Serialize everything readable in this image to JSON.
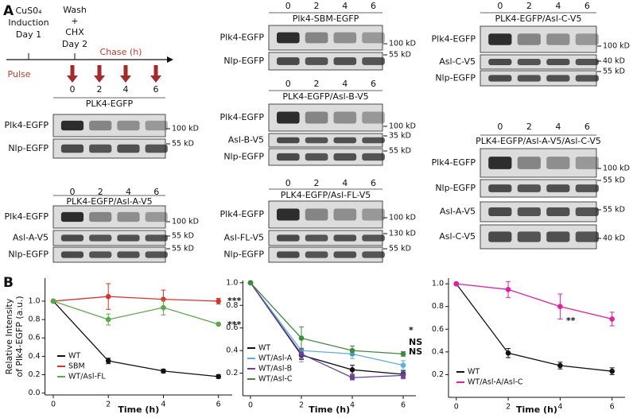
{
  "panel_a": {
    "label": "A",
    "timeline": {
      "induction": [
        "CuS0₄",
        "Induction",
        "Day 1"
      ],
      "wash": [
        "Wash",
        "+",
        "CHX",
        "Day 2"
      ],
      "chase": "Chase (h)",
      "pulse": "Pulse",
      "times": [
        0,
        2,
        4,
        6
      ]
    },
    "blots": [
      {
        "title": "PLK4-EGFP",
        "color": "#111111",
        "rows": [
          {
            "label": "Plk4-EGFP",
            "marker": "100 kD"
          },
          {
            "label": "Nlp-EGFP",
            "marker": "55 kD"
          }
        ]
      },
      {
        "title": "PLK4-EGFP/Asl-A-V5",
        "color": "#4aa3d6",
        "times": [
          0,
          2,
          4,
          6
        ],
        "rows": [
          {
            "label": "Plk4-EGFP",
            "marker": "100 kD"
          },
          {
            "label": "Asl-A-V5",
            "marker": "55 kD"
          },
          {
            "label": "Nlp-EGFP",
            "marker": "55 kD"
          }
        ]
      },
      {
        "title": "Plk4-SBM-EGFP",
        "color": "#d9342b",
        "times": [
          0,
          2,
          4,
          6
        ],
        "rows": [
          {
            "label": "Plk4-EGFP",
            "marker": "100 kD"
          },
          {
            "label": "Nlp-EGFP",
            "marker": "55 kD"
          }
        ]
      },
      {
        "title": "PLK4-EGFP/Asl-B-V5",
        "color": "#6a3fa0",
        "times": [
          0,
          2,
          4,
          6
        ],
        "rows": [
          {
            "label": "Plk4-EGFP",
            "marker": "100 kD"
          },
          {
            "label": "Asl-B-V5",
            "marker": "35 kD"
          },
          {
            "label": "Nlp-EGFP",
            "marker": "55 kD"
          }
        ]
      },
      {
        "title": "PLK4-EGFP/Asl-FL-V5",
        "color": "#5aaa4a",
        "times": [
          0,
          2,
          4,
          6
        ],
        "rows": [
          {
            "label": "Plk4-EGFP",
            "marker": "100 kD"
          },
          {
            "label": "Asl-FL-V5",
            "marker": "130 kD"
          },
          {
            "label": "Nlp-EGFP",
            "marker": "55 kD"
          }
        ]
      },
      {
        "title": "PLK4-EGFP/Asl-C-V5",
        "color": "#3f7f3f",
        "times": [
          0,
          2,
          4,
          6
        ],
        "rows": [
          {
            "label": "Plk4-EGFP",
            "marker": "100 kD"
          },
          {
            "label": "Asl-C-V5",
            "marker": "40 kD"
          },
          {
            "label": "Nlp-EGFP",
            "marker": "55 kD"
          }
        ]
      },
      {
        "title": "PLK4-EGFP/Asl-A-V5/Asl-C-V5",
        "color": "#d6249d",
        "times": [
          0,
          2,
          4,
          6
        ],
        "rows": [
          {
            "label": "Plk4-EGFP",
            "marker": "100 kD"
          },
          {
            "label": "Nlp-EGFP",
            "marker": "55 kD"
          },
          {
            "label": "Asl-A-V5",
            "marker": "55 kD"
          },
          {
            "label": "Asl-C-V5",
            "marker": "40 kD"
          }
        ]
      }
    ]
  },
  "panel_b": {
    "label": "B"
  },
  "chart_data": [
    {
      "type": "line",
      "x": [
        0,
        2,
        4,
        6
      ],
      "xlim": [
        -0.3,
        6.5
      ],
      "xticks": [
        0,
        2,
        4,
        6
      ],
      "ylim": [
        -0.02,
        1.25
      ],
      "yticks": [
        {
          "value": 0,
          "label": "0.0"
        },
        0.2,
        0.4,
        0.6,
        0.8,
        {
          "value": 1,
          "label": "1.0"
        }
      ],
      "xlabel": "Time (h)",
      "ylabel": [
        "Relative Intensity",
        "of Plk4-EGFP (a.u.)"
      ],
      "legend": "lower left",
      "series": [
        {
          "name": "WT",
          "color": "#111111",
          "values": [
            1.0,
            0.35,
            0.24,
            0.18
          ],
          "errors": [
            0,
            0.03,
            0.02,
            0.02
          ]
        },
        {
          "name": "SBM",
          "color": "#d9342b",
          "values": [
            1.0,
            1.05,
            1.02,
            1.0
          ],
          "errors": [
            0,
            0.14,
            0.1,
            0.03
          ]
        },
        {
          "name": "WT/Asl-FL",
          "color": "#5aaa4a",
          "values": [
            1.0,
            0.8,
            0.93,
            0.75
          ],
          "errors": [
            0,
            0.06,
            0.08,
            0.01
          ]
        }
      ],
      "annotations": [
        {
          "text": "***",
          "color": "#d9342b"
        },
        {
          "text": "***",
          "color": "#5aaa4a"
        }
      ]
    },
    {
      "type": "line",
      "x": [
        0,
        2,
        4,
        6
      ],
      "xlim": [
        -0.3,
        6.5
      ],
      "xticks": [
        0,
        2,
        4,
        6
      ],
      "ylim": [
        0,
        1.02
      ],
      "yticks": [
        0.2,
        0.4,
        0.6,
        0.8,
        {
          "value": 1,
          "label": "1.0"
        }
      ],
      "xlabel": "Time (h)",
      "legend": "lower left",
      "series": [
        {
          "name": "WT",
          "color": "#111111",
          "values": [
            1.0,
            0.36,
            0.23,
            0.19
          ],
          "errors": [
            0,
            0.03,
            0.04,
            0.03
          ]
        },
        {
          "name": "WT/Asl-A",
          "color": "#5aaee0",
          "values": [
            1.0,
            0.4,
            0.37,
            0.27
          ],
          "errors": [
            0,
            0.1,
            0.04,
            0.04
          ]
        },
        {
          "name": "WT/Asl-B",
          "color": "#6a3fa0",
          "values": [
            1.0,
            0.37,
            0.16,
            0.18
          ],
          "errors": [
            0,
            0.05,
            0.02,
            0.03
          ]
        },
        {
          "name": "WT/Asl-C",
          "color": "#3f8a3f",
          "values": [
            1.0,
            0.51,
            0.4,
            0.37
          ],
          "errors": [
            0,
            0.1,
            0.04,
            0.02
          ]
        }
      ],
      "annotations": [
        {
          "text": "*",
          "color": "#3f8a3f"
        },
        {
          "text": "NS",
          "color": "#5aaee0"
        },
        {
          "text": "NS",
          "color": "#6a3fa0"
        }
      ]
    },
    {
      "type": "line",
      "x": [
        0,
        2,
        4,
        6
      ],
      "xlim": [
        -0.3,
        6.5
      ],
      "xticks": [
        0,
        2,
        4,
        6
      ],
      "ylim": [
        0,
        1.05
      ],
      "yticks": [
        0.2,
        0.4,
        0.6,
        0.8,
        {
          "value": 1,
          "label": "1.0"
        }
      ],
      "xlabel": "Time (h)",
      "legend": "lower left",
      "series": [
        {
          "name": "WT",
          "color": "#111111",
          "values": [
            1.0,
            0.39,
            0.28,
            0.23
          ],
          "errors": [
            0,
            0.04,
            0.03,
            0.03
          ]
        },
        {
          "name": "WT/Asl-A/Asl-C",
          "color": "#e020a0",
          "values": [
            1.0,
            0.95,
            0.8,
            0.69
          ],
          "errors": [
            0,
            0.07,
            0.11,
            0.06
          ]
        }
      ],
      "annotations": [
        {
          "text": "**",
          "color": "#e020a0"
        }
      ]
    }
  ]
}
